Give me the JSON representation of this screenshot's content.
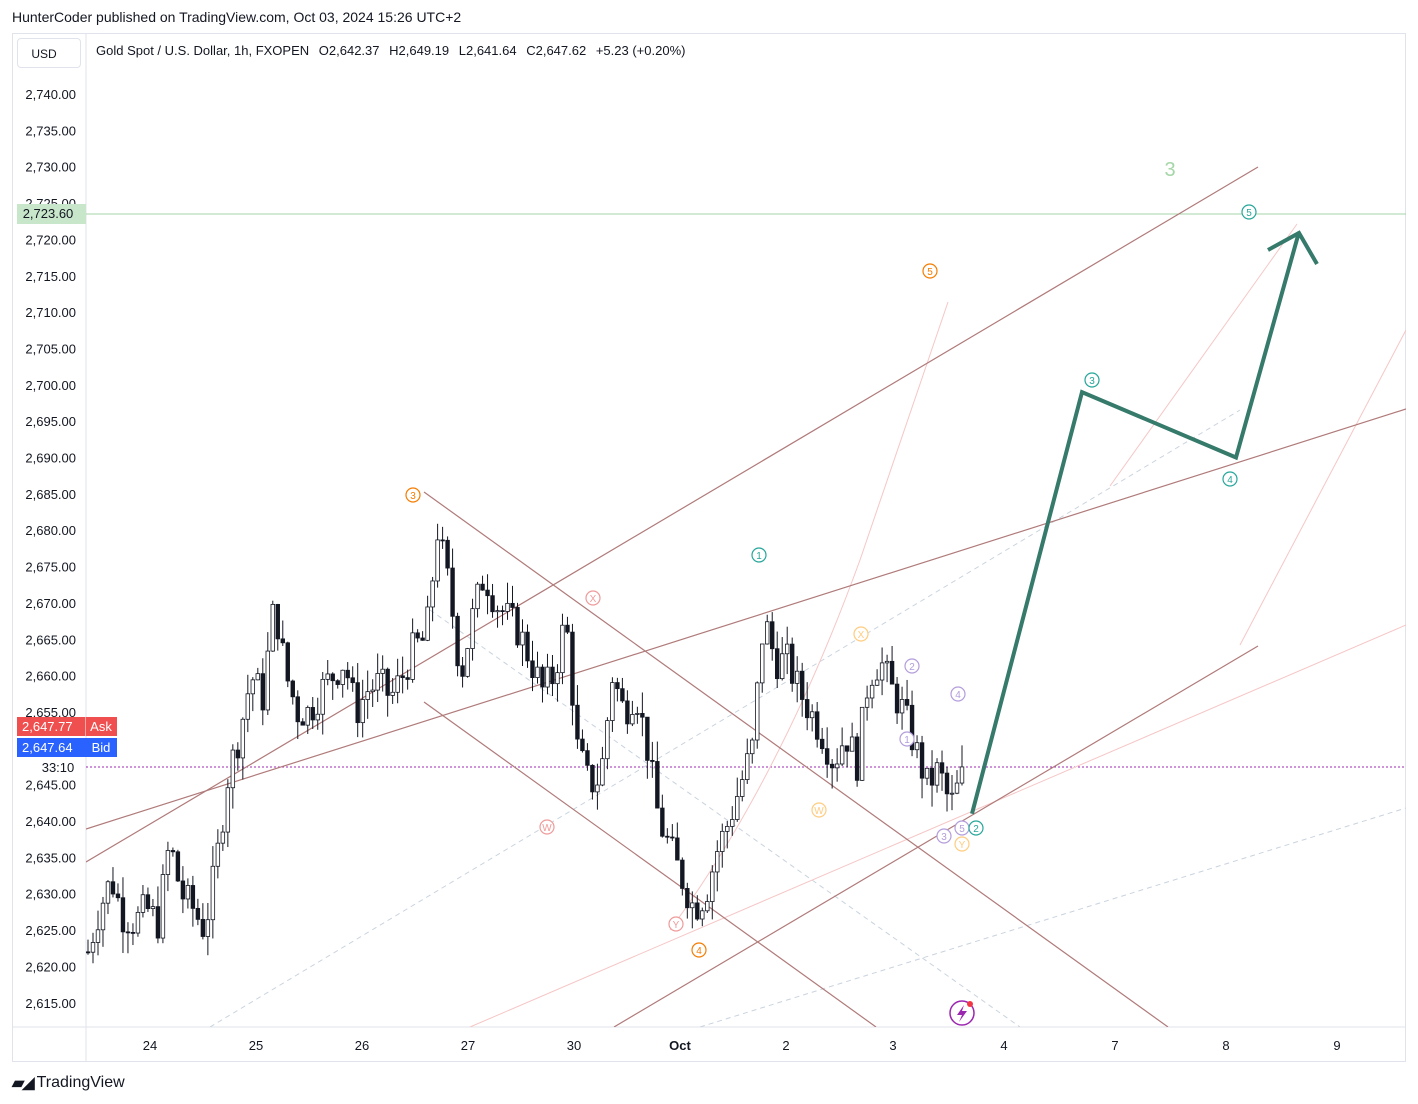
{
  "header": {
    "publisher": "HunterCoder published on TradingView.com, Oct 03, 2024 15:26 UTC+2"
  },
  "toolbar": {
    "currency": "USD"
  },
  "legend": {
    "symbol": "Gold Spot / U.S. Dollar, 1h, FXOPEN",
    "open": "O2,642.37",
    "high": "H2,649.19",
    "low": "L2,641.64",
    "close": "C2,647.62",
    "change": "+5.23 (+0.20%)"
  },
  "price_axis": {
    "labels": [
      "2,740.00",
      "2,735.00",
      "2,730.00",
      "2,725.00",
      "2,720.00",
      "2,715.00",
      "2,710.00",
      "2,705.00",
      "2,700.00",
      "2,695.00",
      "2,690.00",
      "2,685.00",
      "2,680.00",
      "2,675.00",
      "2,670.00",
      "2,665.00",
      "2,660.00",
      "2,655.00",
      "2,650.00",
      "2,645.00",
      "2,640.00",
      "2,635.00",
      "2,630.00",
      "2,625.00",
      "2,620.00",
      "2,615.00"
    ],
    "target_label": "2,723.60",
    "ask_price": "2,647.77",
    "ask_label": "Ask",
    "bid_price": "2,647.64",
    "bid_label": "Bid",
    "countdown": "33:10"
  },
  "time_axis": {
    "labels": [
      "24",
      "25",
      "26",
      "27",
      "30",
      "Oct",
      "2",
      "3",
      "4",
      "7",
      "8",
      "9"
    ]
  },
  "annotations": {
    "big_wave": "3",
    "circles": [
      {
        "text": "3",
        "color": "#f57c00"
      },
      {
        "text": "X",
        "color": "#ef9a9a"
      },
      {
        "text": "W",
        "color": "#ef9a9a"
      },
      {
        "text": "Y",
        "color": "#ef9a9a"
      },
      {
        "text": "4",
        "color": "#f57c00"
      },
      {
        "text": "5",
        "color": "#f57c00"
      },
      {
        "text": "1",
        "color": "#26a69a"
      },
      {
        "text": "X",
        "color": "#ffcc80"
      },
      {
        "text": "W",
        "color": "#ffcc80"
      },
      {
        "text": "Y",
        "color": "#ffcc80"
      },
      {
        "text": "1",
        "color": "#b39ddb"
      },
      {
        "text": "2",
        "color": "#b39ddb"
      },
      {
        "text": "3",
        "color": "#b39ddb"
      },
      {
        "text": "4",
        "color": "#b39ddb"
      },
      {
        "text": "5",
        "color": "#b39ddb"
      },
      {
        "text": "2",
        "color": "#26a69a"
      },
      {
        "text": "3",
        "color": "#26a69a"
      },
      {
        "text": "4",
        "color": "#26a69a"
      },
      {
        "text": "5",
        "color": "#26a69a"
      }
    ]
  },
  "colors": {
    "channel_lines": "#b07a7a",
    "projection": "#357a6a",
    "ask": "#f04f4f",
    "bid": "#2962ff",
    "target": "#a5d6a7"
  },
  "footer": {
    "brand": "TradingView"
  },
  "chart_data": {
    "type": "candlestick",
    "title": "Gold Spot / U.S. Dollar, 1h, FXOPEN",
    "ylim": [
      2612,
      2745
    ],
    "x_labels": [
      "24",
      "25",
      "26",
      "27",
      "30",
      "Oct",
      "2",
      "3",
      "4",
      "7",
      "8",
      "9"
    ],
    "key_levels": {
      "target": 2723.6,
      "ask": 2647.77,
      "bid": 2647.64
    },
    "ohlc_last": {
      "open": 2642.37,
      "high": 2649.19,
      "low": 2641.64,
      "close": 2647.62
    },
    "close_path": [
      2622,
      2628,
      2632,
      2627,
      2626,
      2628,
      2626,
      2637,
      2630,
      2628,
      2625,
      2634,
      2646,
      2652,
      2660,
      2657,
      2670,
      2660,
      2655,
      2655,
      2658,
      2660,
      2662,
      2655,
      2658,
      2659,
      2657,
      2660,
      2664,
      2665,
      2680,
      2672,
      2660,
      2668,
      2674,
      2670,
      2668,
      2666,
      2662,
      2658,
      2660,
      2668,
      2650,
      2645,
      2646,
      2660,
      2655,
      2658,
      2650,
      2640,
      2636,
      2632,
      2628,
      2630,
      2636,
      2640,
      2645,
      2650,
      2668,
      2662,
      2662,
      2658,
      2655,
      2652,
      2648,
      2652,
      2648,
      2660,
      2662,
      2658,
      2655,
      2650,
      2645,
      2647,
      2642,
      2646
    ],
    "projection": [
      {
        "label": "2",
        "price": 2641
      },
      {
        "label": "3",
        "price": 2699
      },
      {
        "label": "4",
        "price": 2690
      },
      {
        "label": "5",
        "price": 2721
      }
    ]
  }
}
